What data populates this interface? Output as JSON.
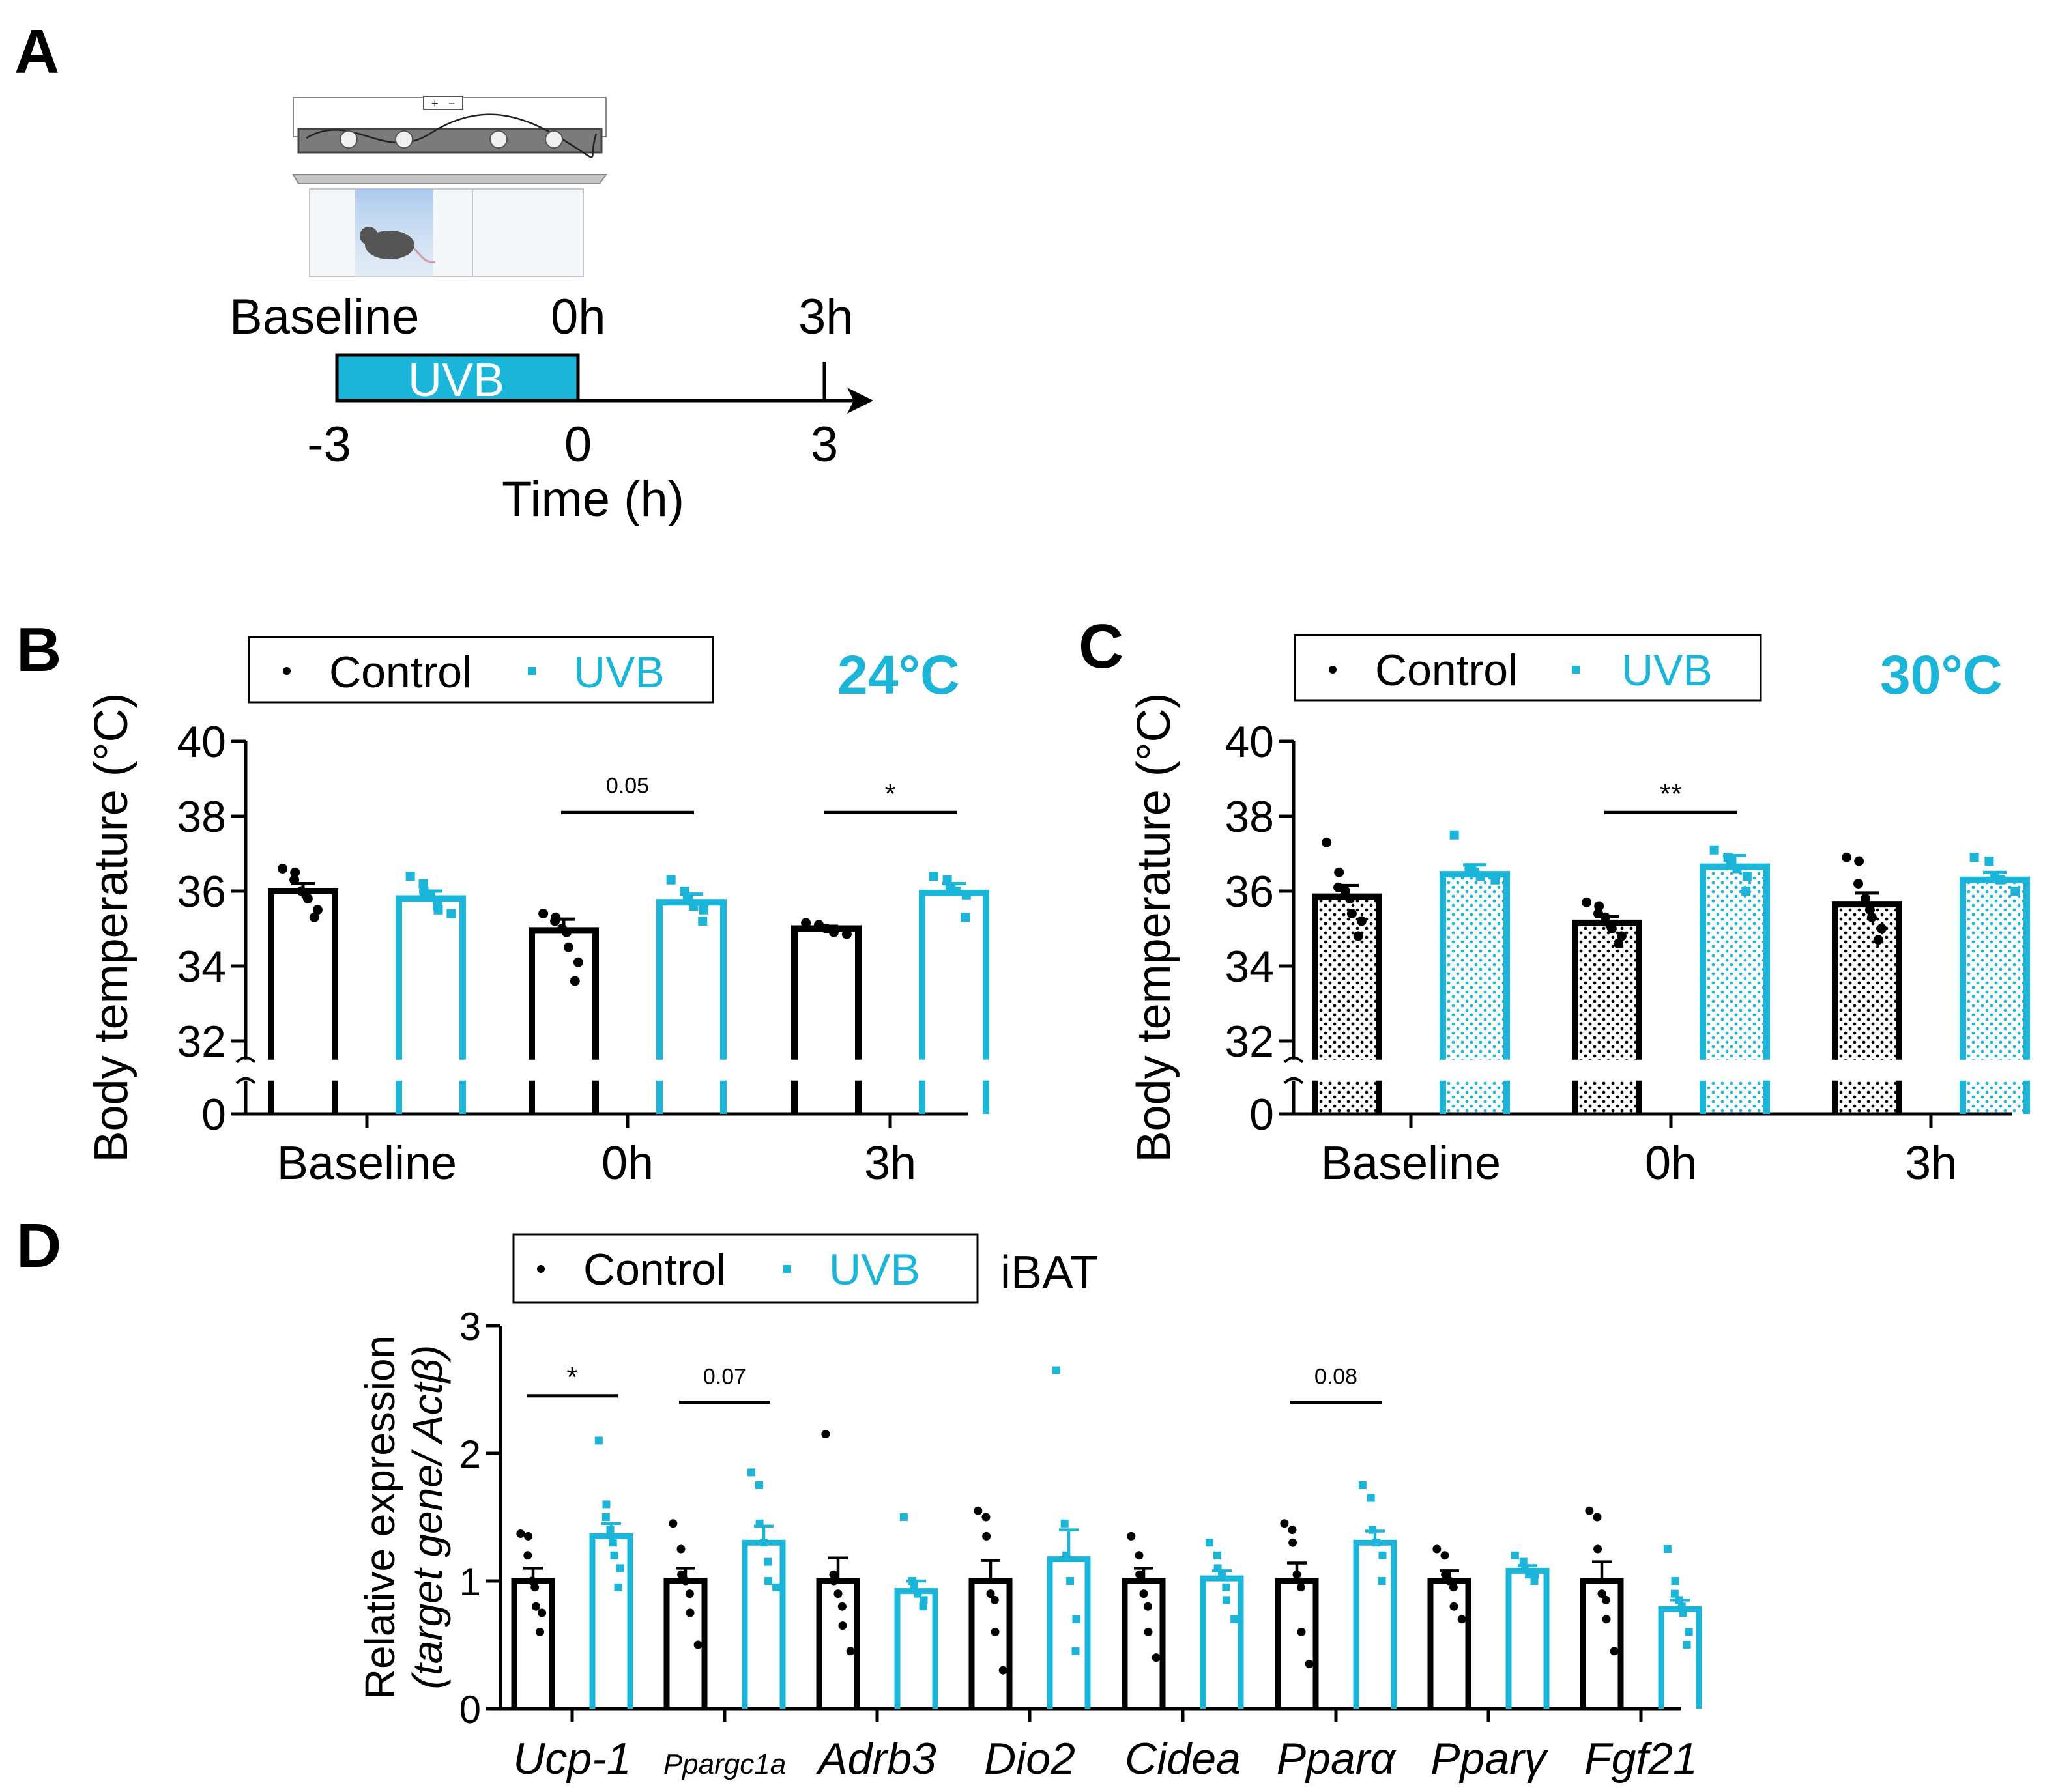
{
  "colors": {
    "control": "#000000",
    "uvb": "#1BB5DA",
    "temp_label": "#1BB5DA"
  },
  "panel_a": {
    "label": "A",
    "timeline": {
      "baseline_label": "Baseline",
      "t0_label": "0h",
      "t3_label": "3h",
      "uvb_label": "UVB",
      "ticks": [
        "-3",
        "0",
        "3"
      ],
      "xlabel": "Time (h)"
    },
    "device": {
      "plus": "+",
      "minus": "−"
    }
  },
  "legend": {
    "control": "Control",
    "uvb": "UVB"
  },
  "panel_b": {
    "label": "B",
    "temp": "24°C"
  },
  "panel_c": {
    "label": "C",
    "temp": "30°C"
  },
  "panel_d": {
    "label": "D",
    "tissue": "iBAT"
  },
  "chart_data": [
    {
      "id": "B",
      "type": "bar",
      "title": "24°C",
      "ylabel": "Body temperature (°C)",
      "categories": [
        "Baseline",
        "0h",
        "3h"
      ],
      "yticks": [
        "0",
        "32",
        "34",
        "36",
        "38",
        "40"
      ],
      "ylim": [
        31,
        40
      ],
      "axis_break": true,
      "fill_pattern": "none",
      "series": [
        {
          "name": "Control",
          "values": [
            36.0,
            34.95,
            35.0
          ],
          "sem": [
            0.2,
            0.3,
            0.06
          ],
          "points": [
            [
              36.6,
              36.5,
              36.3,
              36.0,
              35.9,
              35.8,
              35.5,
              35.3
            ],
            [
              35.4,
              35.3,
              35.2,
              35.0,
              34.9,
              34.5,
              34.1,
              33.6
            ],
            [
              35.15,
              35.1,
              35.05,
              35.0,
              34.95,
              34.9,
              34.85
            ]
          ]
        },
        {
          "name": "UVB",
          "values": [
            35.8,
            35.7,
            35.95
          ],
          "sem": [
            0.2,
            0.22,
            0.25
          ],
          "points": [
            [
              36.4,
              36.2,
              36.0,
              35.9,
              35.6,
              35.5,
              35.4
            ],
            [
              36.3,
              36.0,
              35.8,
              35.6,
              35.5,
              35.2
            ],
            [
              36.4,
              36.3,
              36.1,
              36.0,
              35.9,
              35.3
            ]
          ]
        }
      ],
      "annotations": [
        {
          "category": "0h",
          "text": "0.05"
        },
        {
          "category": "3h",
          "text": "*"
        }
      ]
    },
    {
      "id": "C",
      "type": "bar",
      "title": "30°C",
      "ylabel": "Body temperature (°C)",
      "categories": [
        "Baseline",
        "0h",
        "3h"
      ],
      "yticks": [
        "0",
        "32",
        "34",
        "36",
        "38",
        "40"
      ],
      "ylim": [
        31,
        40
      ],
      "axis_break": true,
      "fill_pattern": "dots",
      "series": [
        {
          "name": "Control",
          "values": [
            35.85,
            35.15,
            35.65
          ],
          "sem": [
            0.3,
            0.18,
            0.3
          ],
          "points": [
            [
              37.3,
              36.5,
              36.1,
              36.0,
              35.8,
              35.4,
              35.2,
              34.8
            ],
            [
              35.7,
              35.6,
              35.4,
              35.3,
              35.1,
              35.0,
              34.8,
              34.6
            ],
            [
              36.9,
              36.8,
              36.2,
              35.8,
              35.5,
              35.3,
              35.0,
              34.7
            ]
          ]
        },
        {
          "name": "UVB",
          "values": [
            36.45,
            36.65,
            36.3
          ],
          "sem": [
            0.25,
            0.3,
            0.2
          ],
          "points": [
            [
              37.5,
              36.6,
              36.5,
              36.4,
              36.3
            ],
            [
              37.1,
              36.9,
              36.8,
              36.6,
              36.4,
              36.0
            ],
            [
              36.9,
              36.8,
              36.4,
              36.3,
              36.0
            ]
          ]
        }
      ],
      "annotations": [
        {
          "category": "0h",
          "text": "**"
        }
      ]
    },
    {
      "id": "D",
      "type": "bar",
      "title": "iBAT",
      "ylabel": "Relative expression",
      "ylabel2": "(target gene/ Actβ)",
      "categories": [
        "Ucp-1",
        "Ppargc1a",
        "Adrb3",
        "Dio2",
        "Cidea",
        "Pparα",
        "Pparγ",
        "Fgf21"
      ],
      "yticks": [
        "0",
        "1",
        "2",
        "3"
      ],
      "ylim": [
        0,
        3
      ],
      "series": [
        {
          "name": "Control",
          "values": [
            1.0,
            1.0,
            1.0,
            1.0,
            1.0,
            1.0,
            1.0,
            1.0
          ],
          "sem": [
            0.1,
            0.1,
            0.18,
            0.16,
            0.1,
            0.14,
            0.08,
            0.15
          ],
          "points": [
            [
              1.37,
              1.35,
              1.2,
              1.0,
              0.95,
              0.8,
              0.75,
              0.6
            ],
            [
              1.45,
              1.25,
              1.05,
              1.0,
              0.9,
              0.75,
              0.5
            ],
            [
              2.15,
              1.05,
              1.0,
              0.9,
              0.8,
              0.65,
              0.45
            ],
            [
              1.55,
              1.5,
              1.35,
              0.9,
              0.85,
              0.6,
              0.3
            ],
            [
              1.35,
              1.2,
              1.05,
              0.9,
              0.8,
              0.6,
              0.4
            ],
            [
              1.45,
              1.4,
              1.3,
              1.05,
              0.95,
              0.6,
              0.35
            ],
            [
              1.25,
              1.2,
              1.05,
              1.0,
              0.95,
              0.8,
              0.7
            ],
            [
              1.55,
              1.5,
              1.25,
              0.9,
              0.85,
              0.7,
              0.45
            ]
          ]
        },
        {
          "name": "UVB",
          "values": [
            1.35,
            1.3,
            0.92,
            1.17,
            1.02,
            1.3,
            1.08,
            0.78
          ],
          "sem": [
            0.1,
            0.13,
            0.08,
            0.23,
            0.06,
            0.09,
            0.04,
            0.07
          ],
          "points": [
            [
              2.1,
              1.6,
              1.5,
              1.4,
              1.3,
              1.2,
              1.1,
              0.95
            ],
            [
              1.85,
              1.75,
              1.45,
              1.3,
              1.15,
              1.0,
              0.95
            ],
            [
              1.5,
              1.0,
              0.95,
              0.9,
              0.85,
              0.8
            ],
            [
              2.65,
              1.45,
              1.2,
              1.0,
              0.7,
              0.45
            ],
            [
              1.3,
              1.2,
              1.1,
              1.05,
              0.95,
              0.85,
              0.7
            ],
            [
              1.75,
              1.65,
              1.4,
              1.3,
              1.2,
              1.0
            ],
            [
              1.2,
              1.15,
              1.1,
              1.05,
              1.05,
              1.0
            ],
            [
              1.25,
              1.0,
              0.9,
              0.85,
              0.8,
              0.75,
              0.6,
              0.5
            ]
          ]
        }
      ],
      "annotations": [
        {
          "category": "Ucp-1",
          "text": "*"
        },
        {
          "category": "Ppargc1a",
          "text": "0.07"
        },
        {
          "category": "Pparα",
          "text": "0.08"
        }
      ]
    }
  ]
}
